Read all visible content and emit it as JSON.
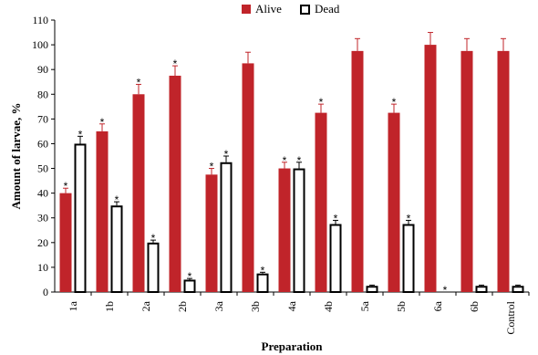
{
  "chart_data": {
    "type": "bar",
    "xlabel": "Preparation",
    "ylabel": "Amount of larvae, %",
    "ylim": [
      0,
      110
    ],
    "yticks": [
      "0",
      "10",
      "20",
      "30",
      "40",
      "50",
      "60",
      "70",
      "80",
      "90",
      "100",
      "110"
    ],
    "categories": [
      "1a",
      "1b",
      "2a",
      "2b",
      "3a",
      "3b",
      "4a",
      "4b",
      "5a",
      "5b",
      "6a",
      "6b",
      "Control"
    ],
    "series": [
      {
        "name": "Alive",
        "color": "#c0242a",
        "values": [
          40,
          65,
          80,
          87.5,
          47.5,
          92.5,
          50,
          72.5,
          97.5,
          72.5,
          100,
          97.5,
          97.5
        ],
        "errors": [
          2,
          3,
          4,
          4,
          2.5,
          4.5,
          2.5,
          3.5,
          5,
          3.5,
          5,
          5,
          5
        ],
        "significant": [
          true,
          true,
          true,
          true,
          true,
          false,
          true,
          true,
          false,
          true,
          false,
          false,
          false
        ]
      },
      {
        "name": "Dead",
        "color": "#ffffff",
        "values": [
          60,
          35,
          20,
          5,
          52.5,
          7.5,
          50,
          27.5,
          2.5,
          27.5,
          0,
          2.5,
          2.5
        ],
        "errors": [
          3,
          1.5,
          1,
          0.5,
          2.5,
          0.5,
          2.5,
          1.5,
          0.3,
          1.5,
          0,
          0.3,
          0.3
        ],
        "significant": [
          true,
          true,
          true,
          true,
          true,
          true,
          true,
          true,
          false,
          true,
          true,
          false,
          false
        ]
      }
    ],
    "significance_mark": "*",
    "legend_position": "top-center",
    "grid": false
  }
}
